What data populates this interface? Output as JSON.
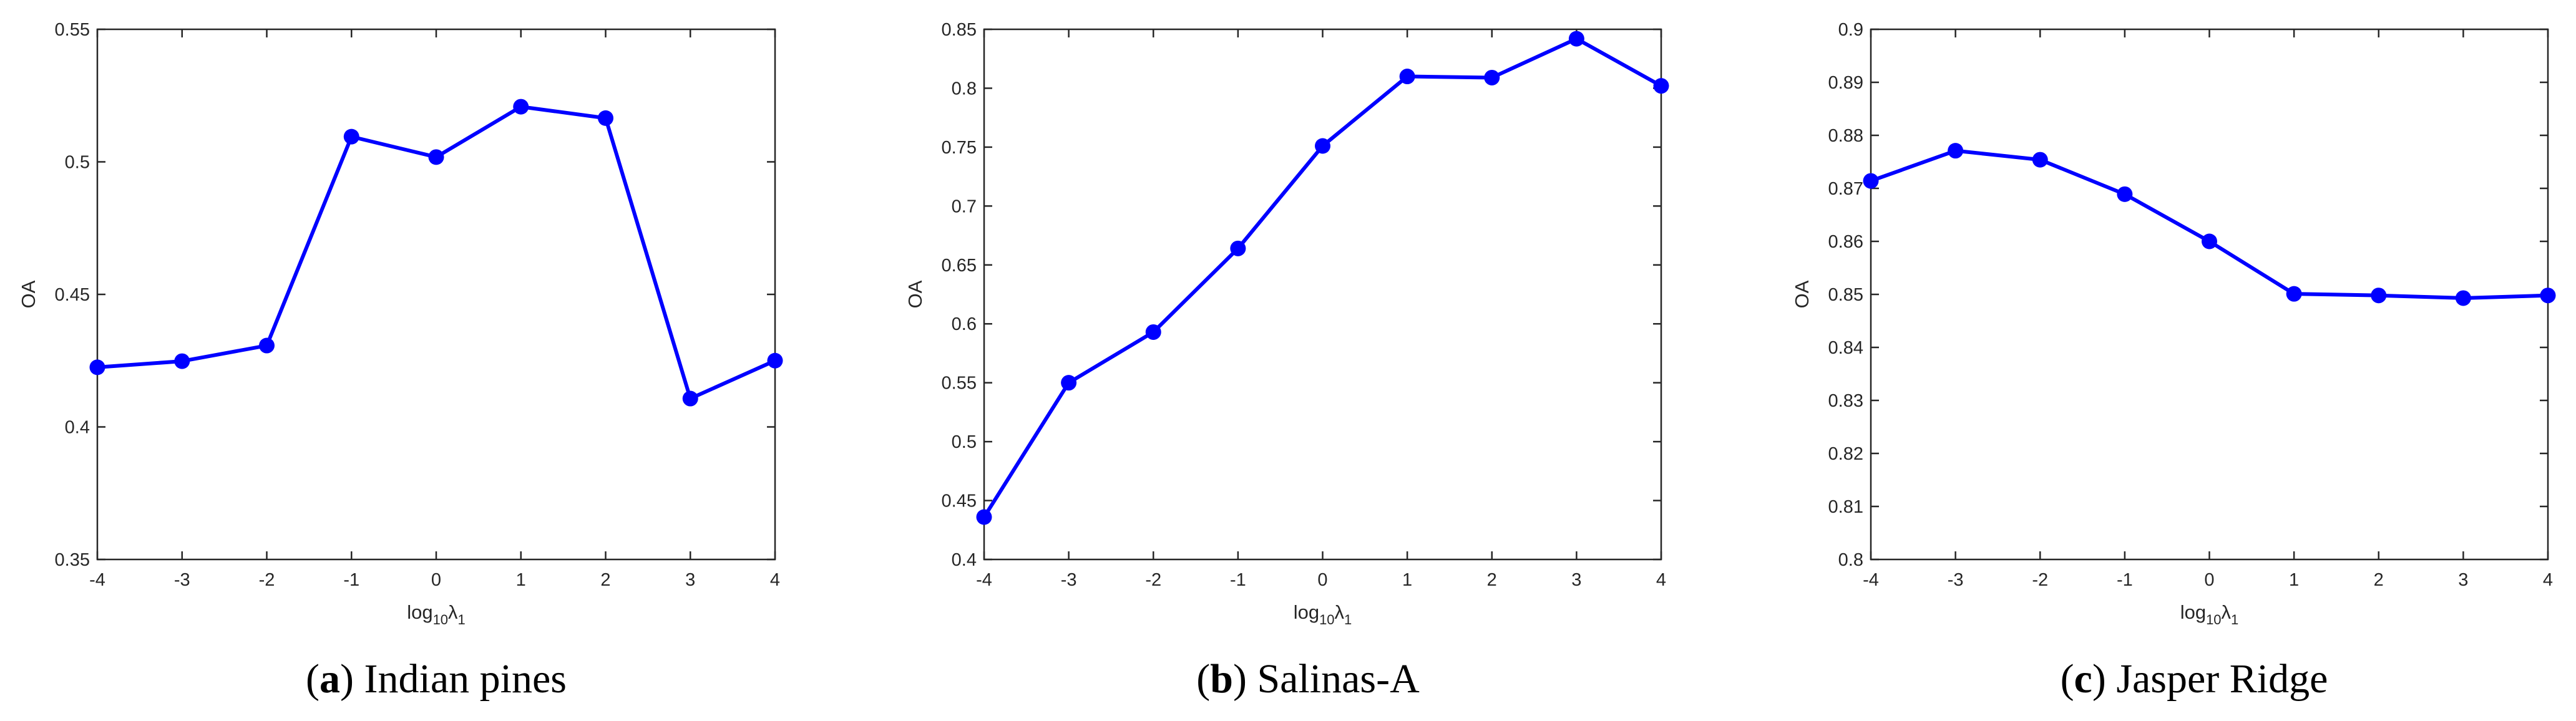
{
  "figure": {
    "panels": [
      {
        "caption_letter": "a",
        "caption_text": "Indian pines"
      },
      {
        "caption_letter": "b",
        "caption_text": "Salinas-A"
      },
      {
        "caption_letter": "c",
        "caption_text": "Jasper Ridge"
      }
    ],
    "series_color": "#0000ff",
    "axis_color": "#262626"
  },
  "chart_data": [
    {
      "type": "line",
      "title": "(a) Indian pines",
      "xlabel": "log10 λ1",
      "ylabel": "OA",
      "x": [
        -4,
        -3,
        -2,
        -1,
        0,
        1,
        2,
        3,
        4
      ],
      "series": [
        {
          "name": "OA",
          "values": [
            0.4225,
            0.4248,
            0.4307,
            0.5095,
            0.5018,
            0.5208,
            0.5165,
            0.4107,
            0.425
          ],
          "color": "#0000ff",
          "marker": "circle"
        }
      ],
      "xlim": [
        -4,
        4
      ],
      "ylim": [
        0.35,
        0.55
      ],
      "xticks": [
        "-4",
        "-3",
        "-2",
        "-1",
        "0",
        "1",
        "2",
        "3",
        "4"
      ],
      "yticks": [
        "0.35",
        "0.4",
        "0.45",
        "0.5",
        "0.55"
      ],
      "grid": false,
      "legend": null
    },
    {
      "type": "line",
      "title": "(b) Salinas-A",
      "xlabel": "log10 λ1",
      "ylabel": "OA",
      "x": [
        -4,
        -3,
        -2,
        -1,
        0,
        1,
        2,
        3,
        4
      ],
      "series": [
        {
          "name": "OA",
          "values": [
            0.436,
            0.55,
            0.593,
            0.664,
            0.751,
            0.81,
            0.809,
            0.842,
            0.802
          ],
          "color": "#0000ff",
          "marker": "circle"
        }
      ],
      "xlim": [
        -4,
        4
      ],
      "ylim": [
        0.4,
        0.85
      ],
      "xticks": [
        "-4",
        "-3",
        "-2",
        "-1",
        "0",
        "1",
        "2",
        "3",
        "4"
      ],
      "yticks": [
        "0.4",
        "0.45",
        "0.5",
        "0.55",
        "0.6",
        "0.65",
        "0.7",
        "0.75",
        "0.8",
        "0.85"
      ],
      "grid": false,
      "legend": null
    },
    {
      "type": "line",
      "title": "(c) Jasper Ridge",
      "xlabel": "log10 λ1",
      "ylabel": "OA",
      "x": [
        -4,
        -3,
        -2,
        -1,
        0,
        1,
        2,
        3,
        4
      ],
      "series": [
        {
          "name": "OA",
          "values": [
            0.8714,
            0.8771,
            0.8754,
            0.8689,
            0.86,
            0.8501,
            0.8498,
            0.8493,
            0.8498
          ],
          "color": "#0000ff",
          "marker": "circle"
        }
      ],
      "xlim": [
        -4,
        4
      ],
      "ylim": [
        0.8,
        0.9
      ],
      "xticks": [
        "-4",
        "-3",
        "-2",
        "-1",
        "0",
        "1",
        "2",
        "3",
        "4"
      ],
      "yticks": [
        "0.8",
        "0.81",
        "0.82",
        "0.83",
        "0.84",
        "0.85",
        "0.86",
        "0.87",
        "0.88",
        "0.89",
        "0.9"
      ],
      "grid": false,
      "legend": null
    }
  ]
}
